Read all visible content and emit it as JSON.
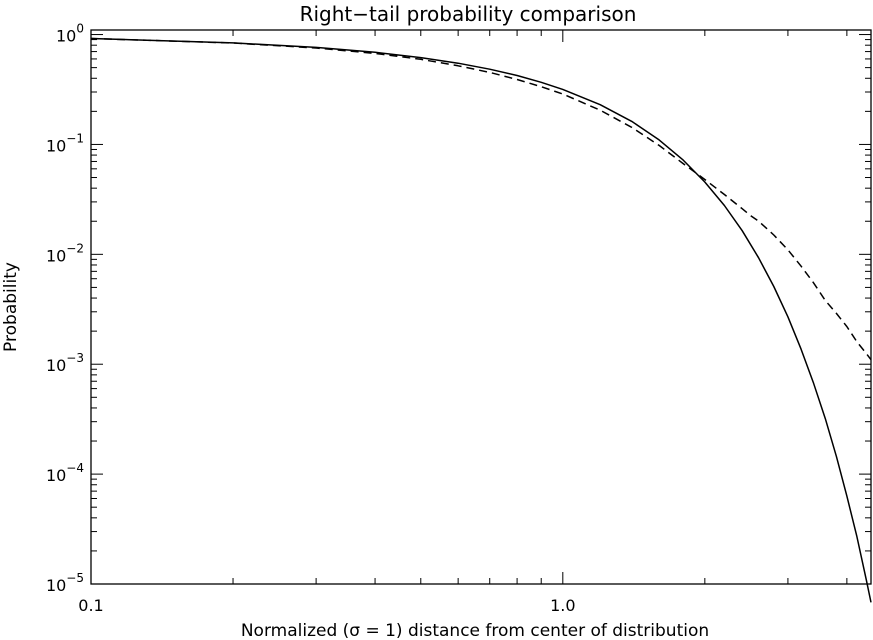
{
  "chart_data": {
    "type": "line",
    "title": "Right−tail probability comparison",
    "xlabel": "Normalized (σ = 1) distance from center of distribution",
    "ylabel": "Probability",
    "xscale": "log",
    "yscale": "log",
    "xlim": [
      0.1,
      4.5
    ],
    "ylim": [
      1e-05,
      1.1
    ],
    "grid": false,
    "x_ticks": [
      {
        "value": 0.1,
        "label": "0.1"
      },
      {
        "value": 1.0,
        "label": "1.0"
      }
    ],
    "y_ticks": [
      {
        "value": 1,
        "base": "10",
        "exp": "0"
      },
      {
        "value": 0.1,
        "base": "10",
        "exp": "−1"
      },
      {
        "value": 0.01,
        "base": "10",
        "exp": "−2"
      },
      {
        "value": 0.001,
        "base": "10",
        "exp": "−3"
      },
      {
        "value": 0.0001,
        "base": "10",
        "exp": "−4"
      },
      {
        "value": 1e-05,
        "base": "10",
        "exp": "−5"
      }
    ],
    "series": [
      {
        "style": "solid",
        "x": [
          0.1,
          0.2,
          0.3,
          0.4,
          0.5,
          0.6,
          0.7,
          0.8,
          0.9,
          1.0,
          1.2,
          1.4,
          1.6,
          1.8,
          2.0,
          2.2,
          2.4,
          2.6,
          2.8,
          3.0,
          3.2,
          3.4,
          3.6,
          3.8,
          4.0,
          4.2,
          4.4,
          4.5
        ],
        "y": [
          0.92,
          0.84,
          0.764,
          0.689,
          0.617,
          0.549,
          0.484,
          0.424,
          0.368,
          0.317,
          0.23,
          0.162,
          0.11,
          0.072,
          0.0455,
          0.0278,
          0.0164,
          0.0093,
          0.0051,
          0.0027,
          0.00137,
          0.00067,
          0.00032,
          0.000145,
          6.3e-05,
          2.7e-05,
          1.08e-05,
          6.8e-06
        ]
      },
      {
        "style": "dashed",
        "x": [
          0.1,
          0.2,
          0.3,
          0.4,
          0.5,
          0.6,
          0.7,
          0.8,
          0.9,
          1.0,
          1.2,
          1.4,
          1.6,
          1.8,
          2.0,
          2.2,
          2.4,
          2.5,
          2.6,
          2.8,
          3.0,
          3.2,
          3.4,
          3.6,
          3.8,
          4.0,
          4.2,
          4.4,
          4.5
        ],
        "y": [
          0.92,
          0.838,
          0.755,
          0.673,
          0.595,
          0.52,
          0.452,
          0.39,
          0.335,
          0.288,
          0.205,
          0.143,
          0.098,
          0.067,
          0.048,
          0.035,
          0.026,
          0.0225,
          0.02,
          0.015,
          0.011,
          0.0078,
          0.0055,
          0.0038,
          0.0029,
          0.0022,
          0.0016,
          0.00125,
          0.0011
        ]
      }
    ]
  }
}
